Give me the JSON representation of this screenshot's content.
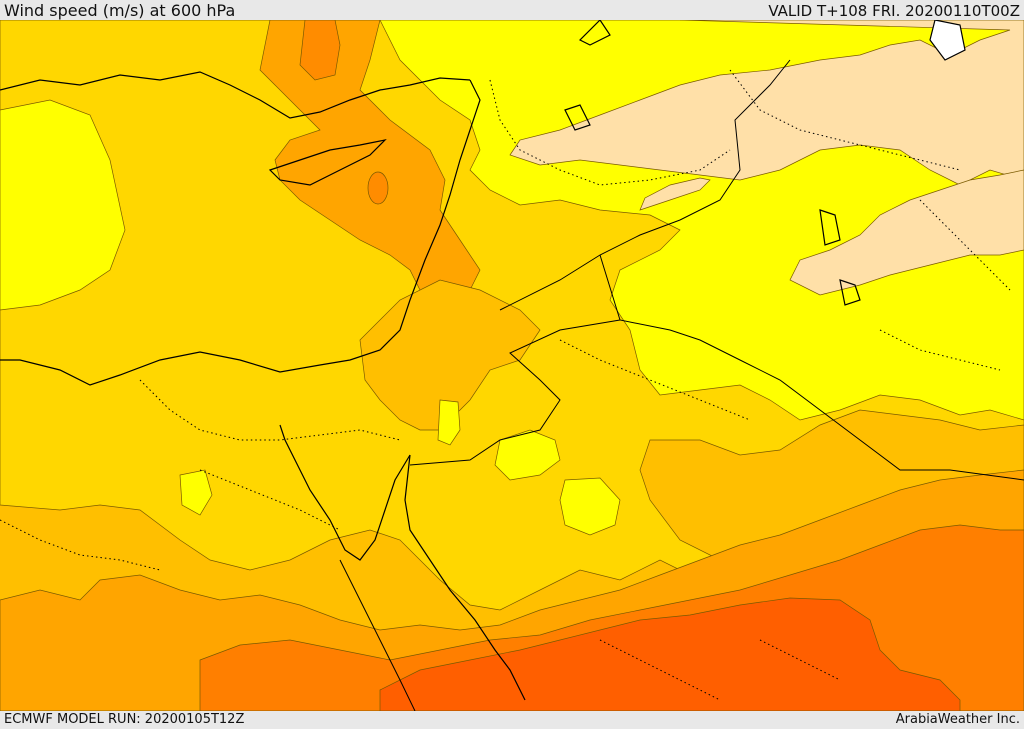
{
  "header": {
    "title": "Wind speed (m/s) at 600 hPa",
    "valid": "VALID T+108 FRI. 20200110T00Z"
  },
  "footer": {
    "model_run": "ECMWF MODEL RUN: 20200105T12Z",
    "credit": "ArabiaWeather Inc."
  },
  "colors": {
    "light": "#ffe0a8",
    "yellow": "#ffff00",
    "gold": "#ffd700",
    "amber": "#ffbf00",
    "orange": "#ff9f00",
    "dark_orange": "#ff7f00",
    "red_orange": "#ff5f00"
  }
}
